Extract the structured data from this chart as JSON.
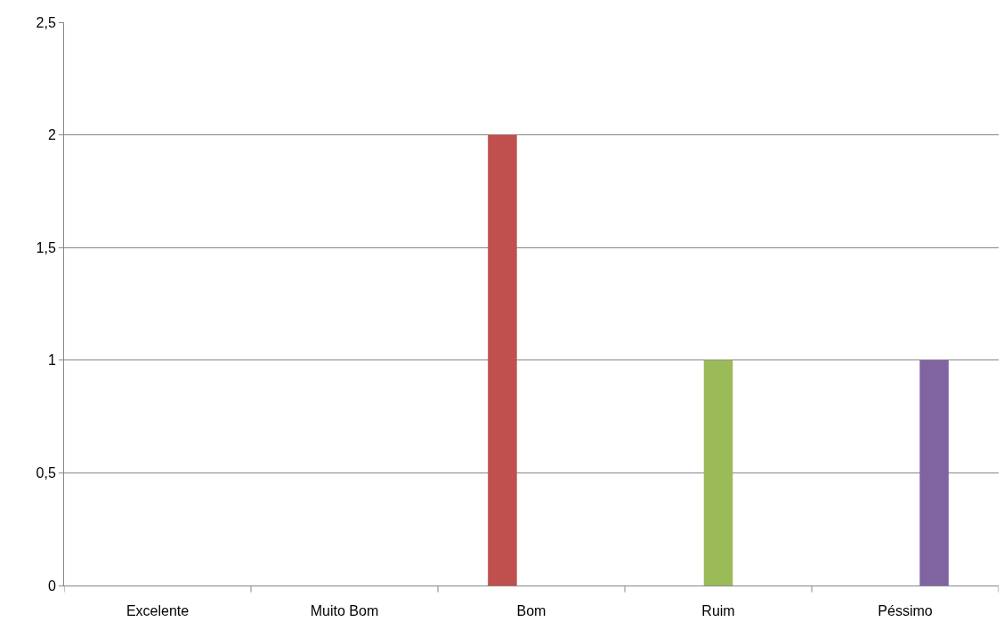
{
  "chart_data": {
    "type": "bar",
    "categories": [
      "Excelente",
      "Muito Bom",
      "Bom",
      "Ruim",
      "Péssimo"
    ],
    "series": [
      {
        "color": "#c0504d",
        "values": [
          null,
          null,
          2,
          null,
          null
        ]
      },
      {
        "color": "#9bbb59",
        "values": [
          null,
          null,
          null,
          1,
          null
        ]
      },
      {
        "color": "#8064a2",
        "values": [
          null,
          null,
          null,
          null,
          1
        ]
      }
    ],
    "ylim": [
      0,
      2.5
    ],
    "yticks": [
      0,
      {
        "value": 0.5,
        "label": "0,5"
      },
      1,
      {
        "value": 1.5,
        "label": "1,5"
      },
      2,
      {
        "value": 2.5,
        "label": "2,5"
      }
    ],
    "grid": "y"
  }
}
